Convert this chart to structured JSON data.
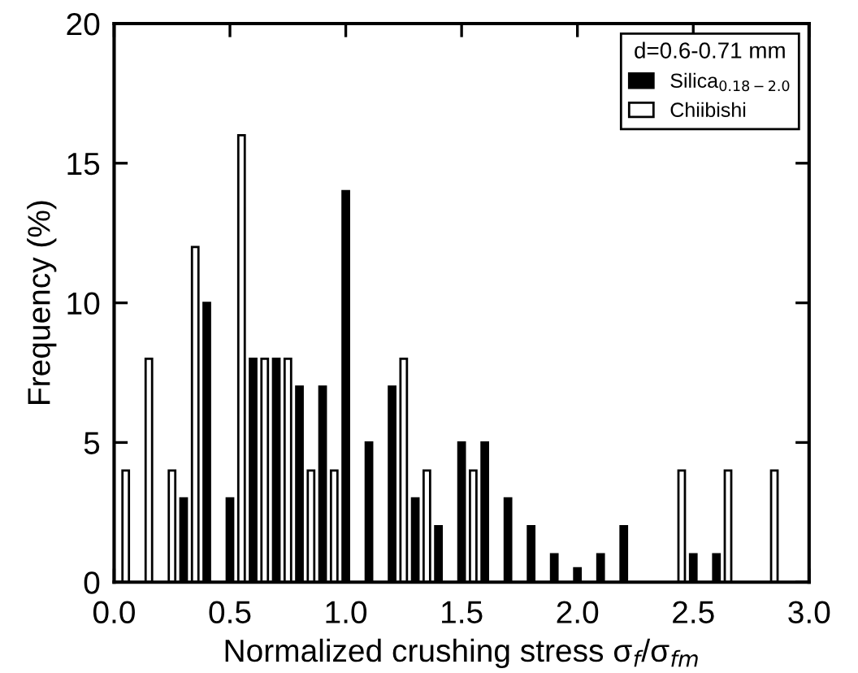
{
  "chart_data": {
    "type": "bar",
    "xlabel": "Normalized crushing stress σ$_{f}$/σ$_{fm}$",
    "ylabel": "Frequency (%)",
    "legend_title": "d=0.6-0.71 mm",
    "legend": "top right",
    "grid": false,
    "xlim": [
      0,
      3
    ],
    "xticks": [
      {
        "value": 0,
        "label": "0.0"
      },
      {
        "value": 0.5,
        "label": "0.5"
      },
      {
        "value": 1,
        "label": "1.0"
      },
      {
        "value": 1.5,
        "label": "1.5"
      },
      {
        "value": 2,
        "label": "2.0"
      },
      {
        "value": 2.5,
        "label": "2.5"
      },
      {
        "value": 3,
        "label": "3.0"
      }
    ],
    "ylim": [
      0,
      20
    ],
    "yticks": [
      0,
      5,
      10,
      15,
      20
    ],
    "x": [
      0.05,
      0.1,
      0.15,
      0.2,
      0.25,
      0.3,
      0.35,
      0.4,
      0.45,
      0.5,
      0.55,
      0.6,
      0.65,
      0.7,
      0.75,
      0.8,
      0.85,
      0.9,
      0.95,
      1.0,
      1.05,
      1.1,
      1.15,
      1.2,
      1.25,
      1.3,
      1.35,
      1.4,
      1.45,
      1.5,
      1.55,
      1.6,
      1.65,
      1.7,
      1.75,
      1.8,
      1.85,
      1.9,
      1.95,
      2.0,
      2.05,
      2.1,
      2.15,
      2.2,
      2.25,
      2.3,
      2.35,
      2.4,
      2.45,
      2.5,
      2.55,
      2.6,
      2.65,
      2.7,
      2.75,
      2.8,
      2.85
    ],
    "series": [
      {
        "name": "Silica$_{0.18−2.0}$",
        "color": "#000000",
        "values": [
          null,
          null,
          null,
          null,
          null,
          3,
          null,
          10,
          null,
          3,
          null,
          8,
          null,
          8,
          null,
          7,
          null,
          7,
          null,
          14,
          null,
          5,
          null,
          7,
          null,
          3,
          null,
          2,
          null,
          5,
          null,
          5,
          null,
          3,
          null,
          2,
          null,
          1,
          null,
          0.5,
          null,
          1,
          null,
          2,
          null,
          null,
          null,
          null,
          null,
          1,
          null,
          1,
          null,
          null,
          null,
          null,
          null
        ]
      },
      {
        "name": "Chiibishi",
        "color": "#ffffff",
        "values": [
          4,
          null,
          8,
          null,
          4,
          null,
          12,
          null,
          null,
          null,
          16,
          null,
          8,
          null,
          8,
          null,
          4,
          null,
          4,
          null,
          null,
          null,
          null,
          null,
          8,
          null,
          4,
          null,
          null,
          null,
          4,
          null,
          null,
          null,
          null,
          null,
          null,
          null,
          null,
          null,
          null,
          null,
          null,
          null,
          null,
          null,
          null,
          null,
          4,
          null,
          null,
          null,
          4,
          null,
          null,
          null,
          4
        ]
      }
    ]
  }
}
